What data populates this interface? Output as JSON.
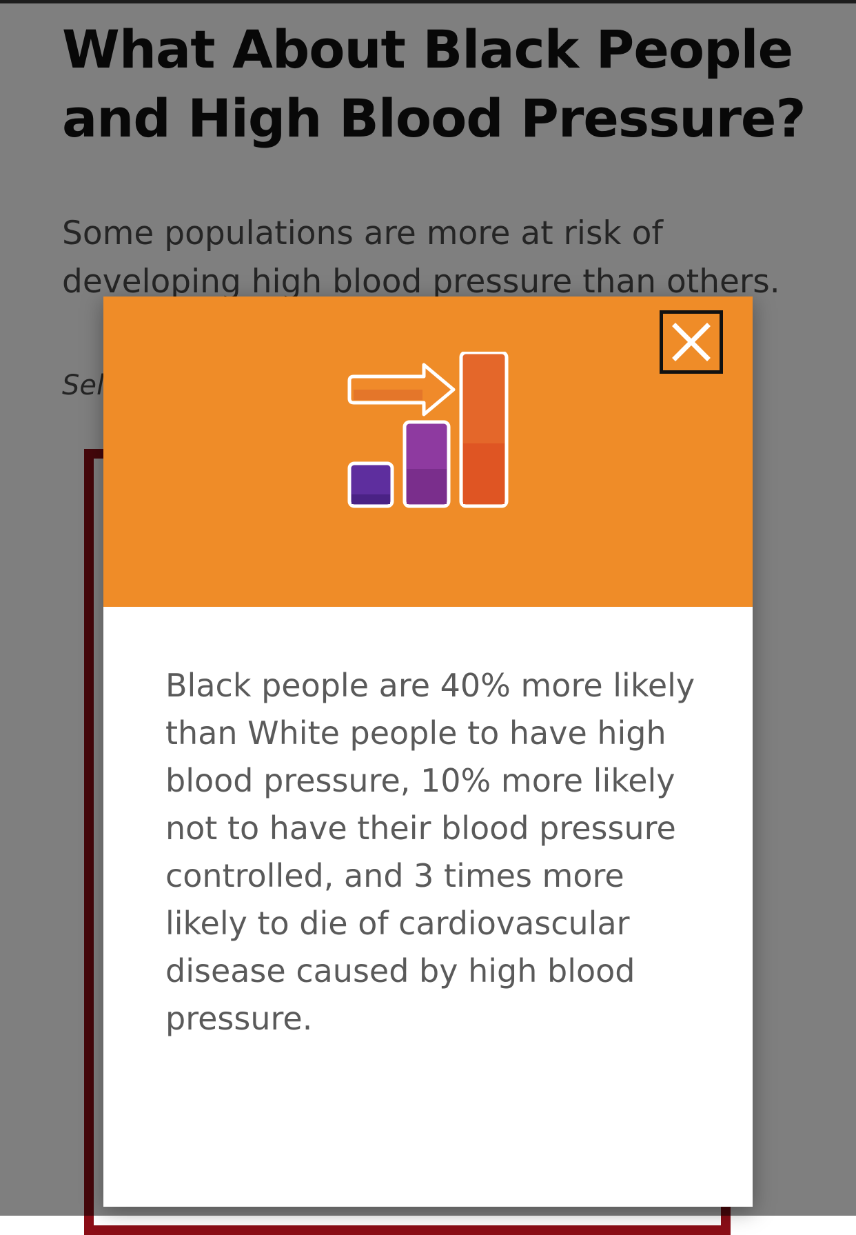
{
  "article": {
    "heading": "What About Black People and High Blood Pressure?",
    "intro": "Some populations are more at risk of developing high blood pressure than others.",
    "select_hint": "Sel"
  },
  "modal": {
    "header_color": "#ef8c28",
    "hero_icon": "rising-bar-chart-with-arrow-icon",
    "close_icon": "close-x-icon",
    "body": "Black people are 40% more likely than White people to have high blood pressure, 10% more likely not to have their blood pressure controlled, and 3 times more likely to die of cardiovascular disease caused by high blood pressure."
  },
  "colors": {
    "frame": "#8b0e17",
    "bar_purple_dark": "#5e2e9e",
    "bar_purple": "#8e3aa0",
    "bar_orange": "#e4672a"
  }
}
